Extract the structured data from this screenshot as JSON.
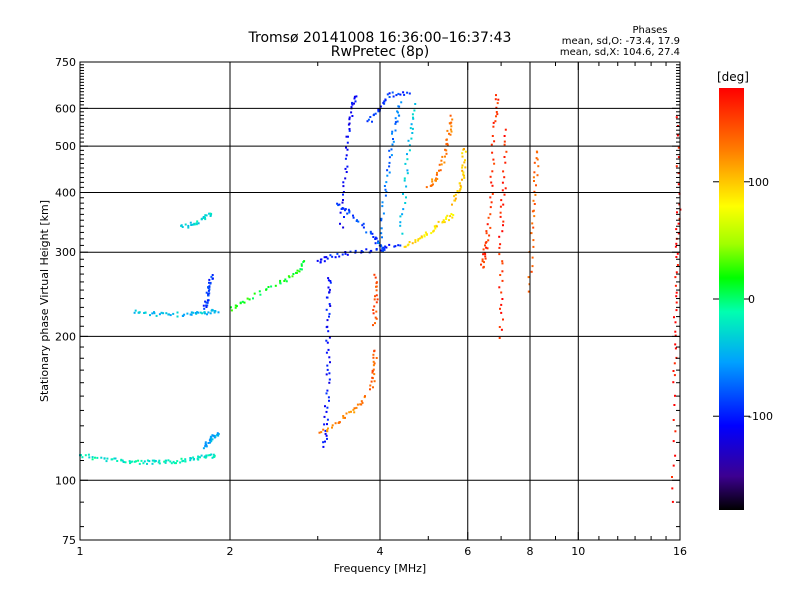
{
  "chart_data": {
    "type": "scatter",
    "title": "Tromsø 20141008 16:36:00–16:37:43",
    "subtitle": "RwPretec (8p)",
    "xlabel": "Frequency [MHz]",
    "ylabel": "Stationary phase Virtual Height [km]",
    "x_scale": "log",
    "y_scale": "log",
    "xlim": [
      1,
      16
    ],
    "ylim": [
      75,
      750
    ],
    "x_ticks": [
      1,
      2,
      4,
      6,
      8,
      10,
      16
    ],
    "y_ticks": [
      75,
      100,
      200,
      300,
      400,
      500,
      600,
      750
    ],
    "grid": true,
    "phase_stats": {
      "title": "Phases",
      "o_line": "mean, sd,O: -73.4, 17.9",
      "x_line": "mean, sd,X: 104.6, 27.4"
    },
    "colorbar": {
      "label": "[deg]",
      "ticks": [
        100,
        0,
        -100
      ],
      "range": [
        -180,
        180
      ]
    },
    "traces": [
      {
        "points": [
          [
            1.0,
            113
          ],
          [
            1.1,
            111
          ],
          [
            1.2,
            110
          ],
          [
            1.3,
            109
          ],
          [
            1.4,
            109
          ],
          [
            1.5,
            109
          ],
          [
            1.6,
            110
          ],
          [
            1.7,
            111
          ],
          [
            1.8,
            112
          ],
          [
            1.88,
            113
          ]
        ],
        "phase": -20
      },
      {
        "points": [
          [
            1.28,
            225
          ],
          [
            1.4,
            223
          ],
          [
            1.55,
            222
          ],
          [
            1.7,
            223
          ],
          [
            1.8,
            224
          ],
          [
            1.9,
            226
          ]
        ],
        "phase": -40
      },
      {
        "points": [
          [
            2.0,
            228
          ],
          [
            2.2,
            240
          ],
          [
            2.5,
            258
          ],
          [
            2.7,
            270
          ],
          [
            2.85,
            288
          ]
        ],
        "phase": 15
      },
      {
        "points": [
          [
            1.6,
            338
          ],
          [
            1.7,
            345
          ],
          [
            1.78,
            355
          ],
          [
            1.85,
            360
          ]
        ],
        "phase": -30
      },
      {
        "points": [
          [
            1.78,
            228
          ],
          [
            1.8,
            240
          ],
          [
            1.82,
            255
          ],
          [
            1.84,
            268
          ]
        ],
        "phase": -90
      },
      {
        "points": [
          [
            1.78,
            117
          ],
          [
            1.82,
            121
          ],
          [
            1.86,
            124
          ],
          [
            1.9,
            125
          ]
        ],
        "phase": -50
      },
      {
        "points": [
          [
            3.1,
            118
          ],
          [
            3.12,
            135
          ],
          [
            3.15,
            165
          ],
          [
            3.15,
            200
          ],
          [
            3.15,
            240
          ],
          [
            3.17,
            270
          ]
        ],
        "phase": -105
      },
      {
        "points": [
          [
            3.0,
            285
          ],
          [
            3.2,
            295
          ],
          [
            3.6,
            300
          ],
          [
            4.0,
            305
          ],
          [
            4.4,
            312
          ]
        ],
        "phase": -100
      },
      {
        "points": [
          [
            3.3,
            380
          ],
          [
            3.5,
            360
          ],
          [
            3.8,
            330
          ],
          [
            4.0,
            310
          ],
          [
            4.1,
            300
          ]
        ],
        "phase": -85
      },
      {
        "points": [
          [
            3.35,
            340
          ],
          [
            3.4,
            420
          ],
          [
            3.45,
            520
          ],
          [
            3.5,
            600
          ],
          [
            3.6,
            640
          ]
        ],
        "phase": -110
      },
      {
        "points": [
          [
            3.8,
            560
          ],
          [
            4.0,
            600
          ],
          [
            4.2,
            640
          ],
          [
            4.6,
            650
          ]
        ],
        "phase": -90
      },
      {
        "points": [
          [
            4.0,
            315
          ],
          [
            4.1,
            400
          ],
          [
            4.2,
            480
          ],
          [
            4.3,
            560
          ],
          [
            4.4,
            620
          ]
        ],
        "phase": -70
      },
      {
        "points": [
          [
            4.4,
            330
          ],
          [
            4.5,
            420
          ],
          [
            4.6,
            520
          ],
          [
            4.7,
            620
          ]
        ],
        "phase": -40
      },
      {
        "points": [
          [
            3.05,
            125
          ],
          [
            3.3,
            132
          ],
          [
            3.55,
            140
          ],
          [
            3.75,
            150
          ]
        ],
        "phase": 125
      },
      {
        "points": [
          [
            3.85,
            155
          ],
          [
            3.9,
            170
          ],
          [
            3.92,
            190
          ]
        ],
        "phase": 140
      },
      {
        "points": [
          [
            3.9,
            210
          ],
          [
            3.92,
            240
          ],
          [
            3.92,
            270
          ]
        ],
        "phase": 150
      },
      {
        "points": [
          [
            4.5,
            310
          ],
          [
            4.8,
            320
          ],
          [
            5.1,
            335
          ],
          [
            5.4,
            350
          ],
          [
            5.6,
            360
          ]
        ],
        "phase": 90
      },
      {
        "points": [
          [
            5.0,
            410
          ],
          [
            5.2,
            430
          ],
          [
            5.4,
            480
          ],
          [
            5.5,
            530
          ],
          [
            5.6,
            580
          ]
        ],
        "phase": 130
      },
      {
        "points": [
          [
            5.6,
            380
          ],
          [
            5.8,
            410
          ],
          [
            5.9,
            450
          ],
          [
            5.9,
            500
          ]
        ],
        "phase": 100
      },
      {
        "points": [
          [
            6.4,
            280
          ],
          [
            6.5,
            300
          ],
          [
            6.6,
            330
          ],
          [
            6.7,
            420
          ],
          [
            6.8,
            560
          ],
          [
            6.9,
            650
          ]
        ],
        "phase": 160
      },
      {
        "points": [
          [
            7.0,
            200
          ],
          [
            7.0,
            260
          ],
          [
            7.0,
            340
          ],
          [
            7.1,
            420
          ],
          [
            7.2,
            560
          ]
        ],
        "phase": 165
      },
      {
        "points": [
          [
            8.0,
            250
          ],
          [
            8.1,
            340
          ],
          [
            8.2,
            420
          ],
          [
            8.3,
            500
          ]
        ],
        "phase": 140
      },
      {
        "points": [
          [
            15.5,
            90
          ],
          [
            15.6,
            160
          ],
          [
            15.7,
            220
          ],
          [
            15.8,
            300
          ],
          [
            15.9,
            380
          ],
          [
            15.9,
            600
          ]
        ],
        "phase": 175
      }
    ]
  }
}
